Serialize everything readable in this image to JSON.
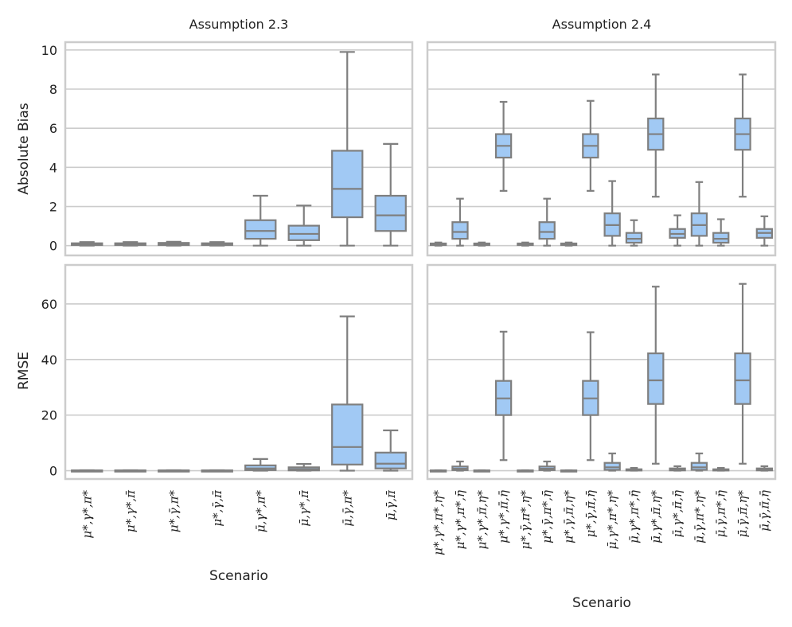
{
  "chart_data": {
    "type": "box",
    "color_fill": "#a1c9f4",
    "color_line": "#7f7f7f",
    "grid": true,
    "xlabel": "Scenario",
    "panels": [
      {
        "id": "ul",
        "title": "Assumption 2.3",
        "ylabel": "Absolute Bias",
        "ylim": [
          -0.5,
          10.4
        ],
        "yticks": [
          0,
          2,
          4,
          6,
          8,
          10
        ],
        "categories": [
          "μ*,γ*,π*",
          "μ*,γ*,π̄",
          "μ*,γ̄,π*",
          "μ*,γ̄,π̄",
          "μ̄,γ*,π*",
          "μ̄,γ*,π̄",
          "μ̄,γ̄,π*",
          "μ̄,γ̄,π̄"
        ],
        "boxes": [
          {
            "min": 0,
            "q1": 0.03,
            "median": 0.08,
            "q3": 0.12,
            "max": 0.18
          },
          {
            "min": 0,
            "q1": 0.03,
            "median": 0.08,
            "q3": 0.12,
            "max": 0.18
          },
          {
            "min": 0,
            "q1": 0.03,
            "median": 0.09,
            "q3": 0.14,
            "max": 0.2
          },
          {
            "min": 0,
            "q1": 0.03,
            "median": 0.08,
            "q3": 0.12,
            "max": 0.18
          },
          {
            "min": 0,
            "q1": 0.35,
            "median": 0.75,
            "q3": 1.3,
            "max": 2.55
          },
          {
            "min": 0,
            "q1": 0.28,
            "median": 0.6,
            "q3": 1.02,
            "max": 2.05
          },
          {
            "min": 0,
            "q1": 1.45,
            "median": 2.9,
            "q3": 4.85,
            "max": 9.9
          },
          {
            "min": 0,
            "q1": 0.75,
            "median": 1.55,
            "q3": 2.55,
            "max": 5.2
          }
        ]
      },
      {
        "id": "ur",
        "title": "Assumption 2.4",
        "ylabel": "",
        "ylim": [
          -0.5,
          10.4
        ],
        "yticks": [
          0,
          2,
          4,
          6,
          8,
          10
        ],
        "categories": [
          "μ*,γ*,π*,η*",
          "μ*,γ*,π*,η̄",
          "μ*,γ*,π̄,η*",
          "μ*,γ*,π̄,η̄",
          "μ*,γ̄,π*,η*",
          "μ*,γ̄,π*,η̄",
          "μ*,γ̄,π̄,η*",
          "μ*,γ̄,π̄,η̄",
          "μ̄,γ*,π*,η*",
          "μ̄,γ*,π*,η̄",
          "μ̄,γ*,π̄,η*",
          "μ̄,γ*,π̄,η̄",
          "μ̄,γ̄,π*,η*",
          "μ̄,γ̄,π*,η̄",
          "μ̄,γ̄,π̄,η*",
          "μ̄,γ̄,π̄,η̄"
        ],
        "boxes": [
          {
            "min": 0,
            "q1": 0.03,
            "median": 0.07,
            "q3": 0.11,
            "max": 0.16
          },
          {
            "min": 0,
            "q1": 0.35,
            "median": 0.7,
            "q3": 1.2,
            "max": 2.4
          },
          {
            "min": 0,
            "q1": 0.03,
            "median": 0.07,
            "q3": 0.11,
            "max": 0.16
          },
          {
            "min": 2.8,
            "q1": 4.5,
            "median": 5.1,
            "q3": 5.7,
            "max": 7.35
          },
          {
            "min": 0,
            "q1": 0.03,
            "median": 0.07,
            "q3": 0.11,
            "max": 0.16
          },
          {
            "min": 0,
            "q1": 0.35,
            "median": 0.7,
            "q3": 1.2,
            "max": 2.4
          },
          {
            "min": 0,
            "q1": 0.03,
            "median": 0.07,
            "q3": 0.11,
            "max": 0.16
          },
          {
            "min": 2.8,
            "q1": 4.5,
            "median": 5.1,
            "q3": 5.7,
            "max": 7.4
          },
          {
            "min": 0,
            "q1": 0.5,
            "median": 1.05,
            "q3": 1.65,
            "max": 3.3
          },
          {
            "min": 0,
            "q1": 0.15,
            "median": 0.35,
            "q3": 0.65,
            "max": 1.3
          },
          {
            "min": 2.5,
            "q1": 4.9,
            "median": 5.7,
            "q3": 6.5,
            "max": 8.75
          },
          {
            "min": 0,
            "q1": 0.4,
            "median": 0.6,
            "q3": 0.85,
            "max": 1.55
          },
          {
            "min": 0,
            "q1": 0.5,
            "median": 1.05,
            "q3": 1.65,
            "max": 3.25
          },
          {
            "min": 0,
            "q1": 0.15,
            "median": 0.35,
            "q3": 0.65,
            "max": 1.35
          },
          {
            "min": 2.5,
            "q1": 4.9,
            "median": 5.7,
            "q3": 6.5,
            "max": 8.75
          },
          {
            "min": 0,
            "q1": 0.4,
            "median": 0.65,
            "q3": 0.85,
            "max": 1.5
          }
        ]
      },
      {
        "id": "ll",
        "title": "",
        "ylabel": "RMSE",
        "ylim": [
          -3,
          74
        ],
        "yticks": [
          0,
          20,
          40,
          60
        ],
        "categories": [
          "μ*,γ*,π*",
          "μ*,γ*,π̄",
          "μ*,γ̄,π*",
          "μ*,γ̄,π̄",
          "μ̄,γ*,π*",
          "μ̄,γ*,π̄",
          "μ̄,γ̄,π*",
          "μ̄,γ̄,π̄"
        ],
        "boxes": [
          {
            "min": 0,
            "q1": 0,
            "median": 0.05,
            "q3": 0.1,
            "max": 0.15
          },
          {
            "min": 0,
            "q1": 0,
            "median": 0.05,
            "q3": 0.1,
            "max": 0.15
          },
          {
            "min": 0,
            "q1": 0,
            "median": 0.05,
            "q3": 0.1,
            "max": 0.15
          },
          {
            "min": 0,
            "q1": 0,
            "median": 0.05,
            "q3": 0.1,
            "max": 0.15
          },
          {
            "min": 0,
            "q1": 0.2,
            "median": 0.8,
            "q3": 1.9,
            "max": 4.2
          },
          {
            "min": 0,
            "q1": 0.1,
            "median": 0.5,
            "q3": 1.2,
            "max": 2.4
          },
          {
            "min": 0,
            "q1": 2.2,
            "median": 8.5,
            "q3": 23.8,
            "max": 55.5
          },
          {
            "min": 0,
            "q1": 0.8,
            "median": 2.5,
            "q3": 6.5,
            "max": 14.5
          }
        ]
      },
      {
        "id": "lr",
        "title": "",
        "ylabel": "",
        "ylim": [
          -3,
          74
        ],
        "yticks": [
          0,
          20,
          40,
          60
        ],
        "categories": [
          "μ*,γ*,π*,η*",
          "μ*,γ*,π*,η̄",
          "μ*,γ*,π̄,η*",
          "μ*,γ*,π̄,η̄",
          "μ*,γ̄,π*,η*",
          "μ*,γ̄,π*,η̄",
          "μ*,γ̄,π̄,η*",
          "μ*,γ̄,π̄,η̄",
          "μ̄,γ*,π*,η*",
          "μ̄,γ*,π*,η̄",
          "μ̄,γ*,π̄,η*",
          "μ̄,γ*,π̄,η̄",
          "μ̄,γ̄,π*,η*",
          "μ̄,γ̄,π*,η̄",
          "μ̄,γ̄,π̄,η*",
          "μ̄,γ̄,π̄,η̄"
        ],
        "boxes": [
          {
            "min": 0,
            "q1": 0,
            "median": 0.05,
            "q3": 0.1,
            "max": 0.15
          },
          {
            "min": 0,
            "q1": 0.2,
            "median": 0.7,
            "q3": 1.5,
            "max": 3.3
          },
          {
            "min": 0,
            "q1": 0,
            "median": 0.05,
            "q3": 0.1,
            "max": 0.15
          },
          {
            "min": 3.8,
            "q1": 20,
            "median": 26,
            "q3": 32.3,
            "max": 50
          },
          {
            "min": 0,
            "q1": 0,
            "median": 0.05,
            "q3": 0.1,
            "max": 0.15
          },
          {
            "min": 0,
            "q1": 0.2,
            "median": 0.7,
            "q3": 1.5,
            "max": 3.3
          },
          {
            "min": 0,
            "q1": 0,
            "median": 0.05,
            "q3": 0.1,
            "max": 0.15
          },
          {
            "min": 3.8,
            "q1": 20,
            "median": 26,
            "q3": 32.3,
            "max": 49.8
          },
          {
            "min": 0,
            "q1": 0.3,
            "median": 1.2,
            "q3": 2.8,
            "max": 6.2
          },
          {
            "min": 0,
            "q1": 0.05,
            "median": 0.25,
            "q3": 0.5,
            "max": 1.0
          },
          {
            "min": 2.5,
            "q1": 24,
            "median": 32.5,
            "q3": 42.2,
            "max": 66.2
          },
          {
            "min": 0,
            "q1": 0.1,
            "median": 0.4,
            "q3": 0.8,
            "max": 1.6
          },
          {
            "min": 0,
            "q1": 0.3,
            "median": 1.2,
            "q3": 2.8,
            "max": 6.2
          },
          {
            "min": 0,
            "q1": 0.05,
            "median": 0.25,
            "q3": 0.5,
            "max": 1.0
          },
          {
            "min": 2.5,
            "q1": 24,
            "median": 32.5,
            "q3": 42.2,
            "max": 67.2
          },
          {
            "min": 0,
            "q1": 0.1,
            "median": 0.4,
            "q3": 0.8,
            "max": 1.6
          }
        ]
      }
    ]
  }
}
